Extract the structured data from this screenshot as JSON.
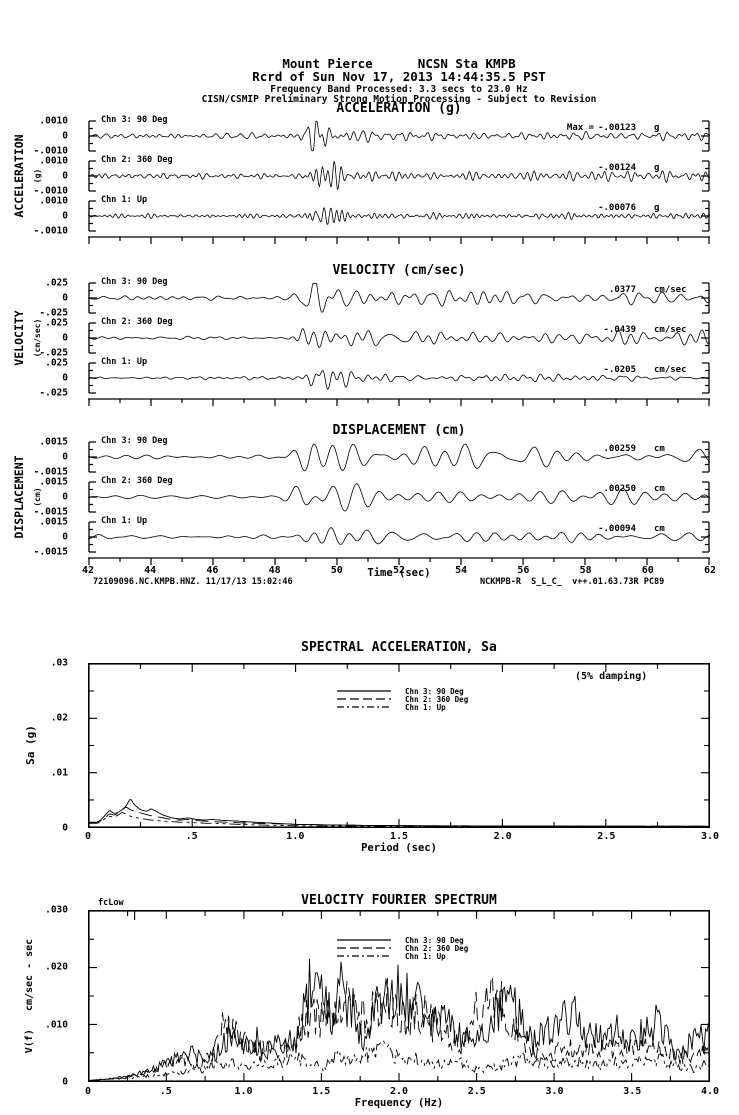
{
  "header": {
    "line1": "Mount Pierce      NCSN Sta KMPB",
    "line2": "Rcrd of Sun Nov 17, 2013 14:44:35.5 PST",
    "line3": "Frequency Band Processed: 3.3 secs to 23.0 Hz",
    "line4": "CISN/CSMIP Preliminary Strong Motion Processing - Subject to Revision"
  },
  "time_axis": {
    "label": "Time (sec)",
    "ticks": [
      "42",
      "44",
      "46",
      "48",
      "50",
      "52",
      "54",
      "56",
      "58",
      "60",
      "62"
    ]
  },
  "footer": {
    "left": "72109096.NC.KMPB.HNZ. 11/17/13 15:02:46",
    "right": "NCKMPB-R  S_L_C_  v++.01.63.73R PC89"
  },
  "chart_data": [
    {
      "type": "line",
      "id": "acceleration_time_series",
      "title": "ACCELERATION (g)",
      "side_label": "ACCELERATION",
      "side_unit": "(g)",
      "xlim": [
        42,
        62
      ],
      "ylim": [
        -0.001,
        0.001
      ],
      "yticks": [
        ".0010",
        "0",
        "-.0010"
      ],
      "channels": [
        {
          "label": "Chn 3: 90 Deg",
          "max_prefix": "Max =",
          "max_value": "-.00123",
          "max_unit": "g",
          "synth": {
            "seed": 101,
            "quiet": 0.12,
            "peak": 0.95,
            "t0": 48.75,
            "rise": 0.55,
            "decay": 1.1,
            "tail": 0.07,
            "fmin": 2.2,
            "fmax": 6.5
          }
        },
        {
          "label": "Chn 2: 360 Deg",
          "max_value": "-.00124",
          "max_unit": "g",
          "synth": {
            "seed": 202,
            "quiet": 0.13,
            "peak": 0.98,
            "t0": 48.85,
            "rise": 0.6,
            "decay": 1.2,
            "tail": 0.07,
            "fmin": 2.2,
            "fmax": 6.5
          }
        },
        {
          "label": "Chn 1: Up",
          "max_value": "-.00076",
          "max_unit": "g",
          "synth": {
            "seed": 303,
            "quiet": 0.1,
            "peak": 0.62,
            "t0": 48.9,
            "rise": 0.45,
            "decay": 0.9,
            "tail": 0.06,
            "fmin": 2.5,
            "fmax": 7.0
          }
        }
      ]
    },
    {
      "type": "line",
      "id": "velocity_time_series",
      "title": "VELOCITY (cm/sec)",
      "side_label": "VELOCITY",
      "side_unit": "(cm/sec)",
      "xlim": [
        42,
        62
      ],
      "ylim": [
        -0.025,
        0.025
      ],
      "yticks": [
        ".025",
        "0",
        "-.025"
      ],
      "channels": [
        {
          "label": "Chn 3: 90 Deg",
          "max_value": ".0377",
          "max_unit": "cm/sec",
          "synth": {
            "seed": 404,
            "quiet": 0.09,
            "peak": 0.92,
            "t0": 48.5,
            "rise": 0.8,
            "decay": 2.6,
            "tail": 0.22,
            "fmin": 1.0,
            "fmax": 3.2
          }
        },
        {
          "label": "Chn 2: 360 Deg",
          "max_value": "-.0439",
          "max_unit": "cm/sec",
          "synth": {
            "seed": 505,
            "quiet": 0.08,
            "peak": 0.97,
            "t0": 48.4,
            "rise": 0.5,
            "decay": 2.4,
            "tail": 0.2,
            "fmin": 1.0,
            "fmax": 3.2
          }
        },
        {
          "label": "Chn 1: Up",
          "max_value": "-.0205",
          "max_unit": "cm/sec",
          "synth": {
            "seed": 606,
            "quiet": 0.07,
            "peak": 0.55,
            "t0": 48.8,
            "rise": 0.6,
            "decay": 2.0,
            "tail": 0.15,
            "fmin": 1.2,
            "fmax": 3.6
          }
        }
      ]
    },
    {
      "type": "line",
      "id": "displacement_time_series",
      "title": "DISPLACEMENT (cm)",
      "side_label": "DISPLACEMENT",
      "side_unit": "(cm)",
      "xlim": [
        42,
        62
      ],
      "ylim": [
        -0.0015,
        0.0015
      ],
      "yticks": [
        ".0015",
        "0",
        "-.0015"
      ],
      "channels": [
        {
          "label": "Chn 3: 90 Deg",
          "max_value": ".00259",
          "max_unit": "cm",
          "synth": {
            "seed": 707,
            "quiet": 0.11,
            "peak": 0.95,
            "t0": 48.3,
            "rise": 0.9,
            "decay": 3.2,
            "tail": 0.4,
            "fmin": 0.7,
            "fmax": 1.7
          }
        },
        {
          "label": "Chn 2: 360 Deg",
          "max_value": ".00250",
          "max_unit": "cm",
          "synth": {
            "seed": 808,
            "quiet": 0.1,
            "peak": 0.92,
            "t0": 48.2,
            "rise": 0.7,
            "decay": 3.0,
            "tail": 0.35,
            "fmin": 0.7,
            "fmax": 1.7
          }
        },
        {
          "label": "Chn 1: Up",
          "max_value": "-.00094",
          "max_unit": "cm",
          "synth": {
            "seed": 909,
            "quiet": 0.08,
            "peak": 0.55,
            "t0": 48.6,
            "rise": 0.8,
            "decay": 2.6,
            "tail": 0.28,
            "fmin": 0.8,
            "fmax": 1.9
          }
        }
      ]
    },
    {
      "type": "line",
      "id": "spectral_acceleration",
      "title": "SPECTRAL ACCELERATION, Sa",
      "xlabel": "Period (sec)",
      "ylabel": "Sa (g)",
      "note": "(5% damping)",
      "xlim": [
        0,
        3
      ],
      "ylim": [
        0,
        0.03
      ],
      "xticks": [
        "0",
        ".5",
        "1.0",
        "1.5",
        "2.0",
        "2.5",
        "3.0"
      ],
      "yticks": [
        ".03",
        ".02",
        ".01",
        "0"
      ],
      "jitter": 0,
      "legend_position": "top-center",
      "grid": false,
      "series": [
        {
          "name": "Chn 3: 90 Deg",
          "style": "solid",
          "x": [
            0.04,
            0.06,
            0.08,
            0.1,
            0.12,
            0.14,
            0.16,
            0.18,
            0.2,
            0.22,
            0.25,
            0.28,
            0.3,
            0.33,
            0.36,
            0.4,
            0.44,
            0.48,
            0.52,
            0.56,
            0.6,
            0.66,
            0.72,
            0.8,
            0.9,
            1.0,
            1.15,
            1.35,
            1.6,
            2.0,
            2.5,
            3.0
          ],
          "y": [
            0.0008,
            0.0013,
            0.0022,
            0.003,
            0.0024,
            0.0026,
            0.0031,
            0.0038,
            0.0052,
            0.004,
            0.0031,
            0.0028,
            0.0033,
            0.0027,
            0.0021,
            0.0016,
            0.0014,
            0.0016,
            0.0013,
            0.0012,
            0.0013,
            0.0011,
            0.001,
            0.0008,
            0.0006,
            0.0004,
            0.0003,
            0.0002,
            0.00015,
            0.0001,
            7e-05,
            5e-05
          ]
        },
        {
          "name": "Chn 2: 360 Deg",
          "style": "dash",
          "x": [
            0.04,
            0.06,
            0.08,
            0.1,
            0.12,
            0.14,
            0.16,
            0.18,
            0.2,
            0.22,
            0.25,
            0.28,
            0.3,
            0.33,
            0.36,
            0.4,
            0.44,
            0.48,
            0.52,
            0.56,
            0.6,
            0.66,
            0.72,
            0.8,
            0.9,
            1.0,
            1.15,
            1.35,
            1.6,
            2.0,
            2.5,
            3.0
          ],
          "y": [
            0.0007,
            0.0011,
            0.0017,
            0.0024,
            0.0021,
            0.0024,
            0.0031,
            0.0036,
            0.0031,
            0.0028,
            0.0025,
            0.0022,
            0.002,
            0.0018,
            0.0016,
            0.0013,
            0.0012,
            0.0013,
            0.0011,
            0.001,
            0.0009,
            0.0008,
            0.0007,
            0.0006,
            0.0005,
            0.0004,
            0.0003,
            0.0002,
            0.00012,
            8e-05,
            6e-05,
            5e-05
          ]
        },
        {
          "name": "Chn 1: Up",
          "style": "dashdot",
          "x": [
            0.04,
            0.06,
            0.08,
            0.1,
            0.12,
            0.14,
            0.16,
            0.18,
            0.2,
            0.22,
            0.25,
            0.28,
            0.3,
            0.33,
            0.36,
            0.4,
            0.44,
            0.48,
            0.52,
            0.56,
            0.6,
            0.66,
            0.72,
            0.8,
            0.9,
            1.0,
            1.15,
            1.35,
            1.6,
            2.0,
            2.5,
            3.0
          ],
          "y": [
            0.0006,
            0.001,
            0.0015,
            0.0019,
            0.0017,
            0.0021,
            0.0026,
            0.0023,
            0.0019,
            0.0017,
            0.0015,
            0.0013,
            0.0012,
            0.0011,
            0.001,
            0.0009,
            0.0008,
            0.0008,
            0.0007,
            0.0006,
            0.0006,
            0.0005,
            0.0004,
            0.0003,
            0.0002,
            0.00015,
            0.0001,
            8e-05,
            6e-05,
            5e-05,
            4e-05,
            3e-05
          ]
        }
      ]
    },
    {
      "type": "line",
      "id": "velocity_fourier_spectrum",
      "title": "VELOCITY FOURIER SPECTRUM",
      "xlabel": "Frequency (Hz)",
      "ylabel": "V(f)   cm/sec - sec",
      "marker": {
        "label": "fcLow",
        "x": 0.3
      },
      "xlim": [
        0,
        4
      ],
      "ylim": [
        0,
        0.03
      ],
      "xticks": [
        "0",
        ".5",
        "1.0",
        "1.5",
        "2.0",
        "2.5",
        "3.0",
        "3.5",
        "4.0"
      ],
      "yticks": [
        ".030",
        ".020",
        ".010",
        "0"
      ],
      "jitter": 0.35,
      "legend_position": "top-center",
      "grid": false,
      "series": [
        {
          "name": "Chn 3: 90 Deg",
          "style": "solid",
          "x": [
            0,
            0.15,
            0.3,
            0.45,
            0.55,
            0.65,
            0.75,
            0.85,
            0.92,
            1.0,
            1.08,
            1.15,
            1.25,
            1.35,
            1.42,
            1.47,
            1.52,
            1.58,
            1.63,
            1.7,
            1.78,
            1.85,
            1.93,
            2.0,
            2.06,
            2.14,
            2.22,
            2.3,
            2.38,
            2.47,
            2.55,
            2.63,
            2.7,
            2.78,
            2.86,
            2.95,
            3.05,
            3.12,
            3.2,
            3.3,
            3.4,
            3.5,
            3.6,
            3.68,
            3.78,
            3.88,
            4.0
          ],
          "y": [
            0,
            0.0004,
            0.001,
            0.0025,
            0.0038,
            0.005,
            0.0042,
            0.006,
            0.009,
            0.0055,
            0.0072,
            0.0058,
            0.0068,
            0.0075,
            0.016,
            0.0198,
            0.013,
            0.011,
            0.0165,
            0.0125,
            0.006,
            0.013,
            0.0145,
            0.0158,
            0.014,
            0.0125,
            0.0095,
            0.011,
            0.0085,
            0.0065,
            0.008,
            0.012,
            0.0145,
            0.011,
            0.0065,
            0.009,
            0.01,
            0.012,
            0.0075,
            0.008,
            0.009,
            0.0075,
            0.0085,
            0.0115,
            0.0045,
            0.0065,
            0.008
          ]
        },
        {
          "name": "Chn 2: 360 Deg",
          "style": "dash",
          "x": [
            0,
            0.2,
            0.35,
            0.5,
            0.6,
            0.7,
            0.8,
            0.9,
            0.97,
            1.05,
            1.15,
            1.25,
            1.35,
            1.45,
            1.55,
            1.62,
            1.7,
            1.78,
            1.88,
            1.95,
            2.05,
            2.12,
            2.2,
            2.3,
            2.4,
            2.5,
            2.58,
            2.66,
            2.75,
            2.85,
            2.95,
            3.05,
            3.15,
            3.25,
            3.35,
            3.45,
            3.55,
            3.65,
            3.75,
            3.85,
            4.0
          ],
          "y": [
            0,
            0.0004,
            0.0012,
            0.0028,
            0.0035,
            0.003,
            0.0042,
            0.012,
            0.008,
            0.006,
            0.0052,
            0.0048,
            0.009,
            0.0125,
            0.0105,
            0.0125,
            0.014,
            0.0105,
            0.0145,
            0.0135,
            0.011,
            0.0125,
            0.0105,
            0.008,
            0.006,
            0.013,
            0.015,
            0.014,
            0.0095,
            0.0055,
            0.004,
            0.006,
            0.005,
            0.006,
            0.0055,
            0.005,
            0.0065,
            0.006,
            0.005,
            0.004,
            0.0055
          ]
        },
        {
          "name": "Chn 1: Up",
          "style": "dashdot",
          "x": [
            0,
            0.3,
            0.5,
            0.7,
            0.9,
            1.0,
            1.1,
            1.2,
            1.3,
            1.4,
            1.5,
            1.6,
            1.7,
            1.8,
            1.9,
            2.0,
            2.1,
            2.2,
            2.3,
            2.4,
            2.5,
            2.6,
            2.7,
            2.8,
            2.9,
            3.0,
            3.1,
            3.2,
            3.3,
            3.4,
            3.5,
            3.6,
            3.7,
            3.8,
            3.9,
            4.0
          ],
          "y": [
            0,
            0.0005,
            0.0012,
            0.0018,
            0.003,
            0.0025,
            0.0035,
            0.0028,
            0.0042,
            0.0035,
            0.0022,
            0.004,
            0.0038,
            0.0045,
            0.0055,
            0.0038,
            0.0042,
            0.003,
            0.0028,
            0.0035,
            0.0018,
            0.0022,
            0.003,
            0.0038,
            0.0032,
            0.0028,
            0.0035,
            0.003,
            0.0025,
            0.0032,
            0.0028,
            0.004,
            0.0035,
            0.0025,
            0.002,
            0.003
          ]
        }
      ]
    }
  ]
}
